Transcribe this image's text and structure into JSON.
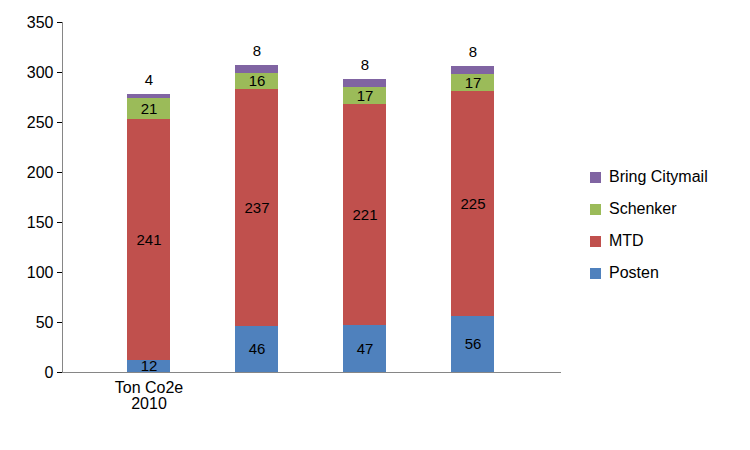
{
  "chart_data": {
    "type": "bar",
    "stacked": true,
    "data_labels": true,
    "grid": false,
    "legend": "right",
    "categories": [
      "Ton Co2e 2010",
      null,
      null,
      null
    ],
    "series": [
      {
        "name": "Posten",
        "color": "#4f81bd",
        "values": [
          12,
          46,
          47,
          56
        ]
      },
      {
        "name": "MTD",
        "color": "#c0504d",
        "values": [
          241,
          237,
          221,
          225
        ]
      },
      {
        "name": "Schenker",
        "color": "#9bbb59",
        "values": [
          21,
          16,
          17,
          17
        ]
      },
      {
        "name": "Bring Citymail",
        "color": "#8064a2",
        "values": [
          4,
          8,
          8,
          8
        ]
      }
    ],
    "ylim": [
      0,
      350
    ],
    "yticks": [
      0,
      50,
      100,
      150,
      200,
      250,
      300,
      350
    ]
  }
}
